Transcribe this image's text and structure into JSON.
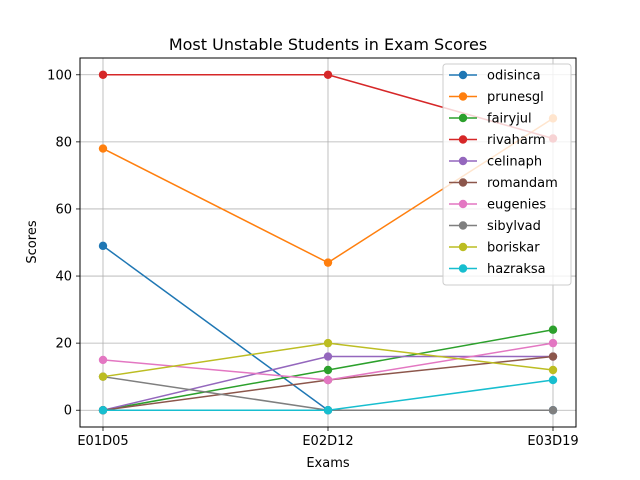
{
  "chart_data": {
    "type": "line",
    "title": "Most Unstable Students in Exam Scores",
    "xlabel": "Exams",
    "ylabel": "Scores",
    "categories": [
      "E01D05",
      "E02D12",
      "E03D19"
    ],
    "ylim": [
      -5,
      105
    ],
    "yticks": [
      0,
      20,
      40,
      60,
      80,
      100
    ],
    "grid": true,
    "legend_position": "upper right",
    "series": [
      {
        "name": "odisinca",
        "color": "#1f77b4",
        "values": [
          49,
          0,
          0
        ]
      },
      {
        "name": "prunesgl",
        "color": "#ff7f0e",
        "values": [
          78,
          44,
          87
        ]
      },
      {
        "name": "fairyjul",
        "color": "#2ca02c",
        "values": [
          0,
          12,
          24
        ]
      },
      {
        "name": "rivaharm",
        "color": "#d62728",
        "values": [
          100,
          100,
          81
        ]
      },
      {
        "name": "celinaph",
        "color": "#9467bd",
        "values": [
          0,
          16,
          16
        ]
      },
      {
        "name": "romandam",
        "color": "#8c564b",
        "values": [
          0,
          9,
          16
        ]
      },
      {
        "name": "eugenies",
        "color": "#e377c2",
        "values": [
          15,
          9,
          20
        ]
      },
      {
        "name": "sibylvad",
        "color": "#7f7f7f",
        "values": [
          10,
          0,
          0
        ]
      },
      {
        "name": "boriskar",
        "color": "#bcbd22",
        "values": [
          10,
          20,
          12
        ]
      },
      {
        "name": "hazraksa",
        "color": "#17becf",
        "values": [
          0,
          0,
          9
        ]
      }
    ]
  }
}
